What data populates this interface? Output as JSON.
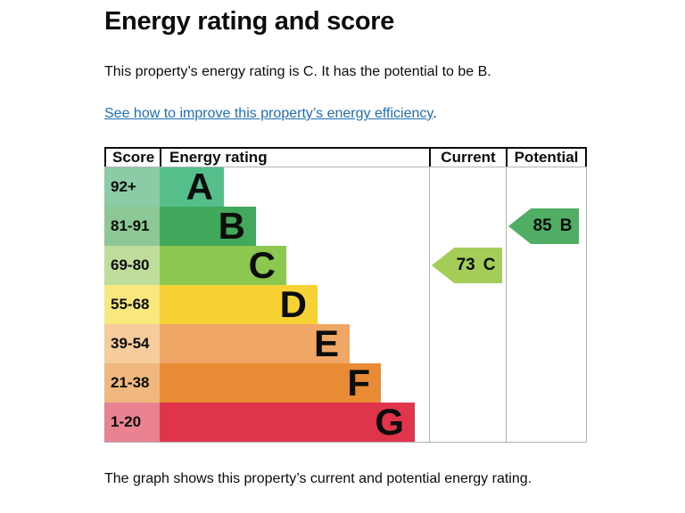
{
  "page": {
    "title": "Energy rating and score",
    "intro": "This property’s energy rating is C. It has the potential to be B.",
    "link_text": "See how to improve this property’s energy efficiency",
    "link_suffix": ".",
    "caption": "The graph shows this property’s current and potential energy rating."
  },
  "chart_data": {
    "type": "epc-energy-rating-bands",
    "title": "Energy rating and score",
    "columns": [
      "Score",
      "Energy rating",
      "Current",
      "Potential"
    ],
    "bands": [
      {
        "letter": "A",
        "score_range": "92+",
        "bar_color": "#54bf8b",
        "cell_color": "#8bcba5"
      },
      {
        "letter": "B",
        "score_range": "81-91",
        "bar_color": "#42a85c",
        "cell_color": "#8cc795"
      },
      {
        "letter": "C",
        "score_range": "69-80",
        "bar_color": "#8cc74f",
        "cell_color": "#c1dd9b"
      },
      {
        "letter": "D",
        "score_range": "55-68",
        "bar_color": "#f8d234",
        "cell_color": "#f9e87e"
      },
      {
        "letter": "E",
        "score_range": "39-54",
        "bar_color": "#f0a665",
        "cell_color": "#f6cc9c"
      },
      {
        "letter": "F",
        "score_range": "21-38",
        "bar_color": "#e98a35",
        "cell_color": "#f0b77e"
      },
      {
        "letter": "G",
        "score_range": "1-20",
        "bar_color": "#e0344a",
        "cell_color": "#e98291"
      }
    ],
    "current": {
      "value": 73,
      "band": "C",
      "color": "#a4cd58"
    },
    "potential": {
      "value": 85,
      "band": "B",
      "color": "#4fae64"
    },
    "text_color": "#0b0c0c",
    "link_color": "#1d70b8",
    "grid_color": "#b1b4b6"
  }
}
